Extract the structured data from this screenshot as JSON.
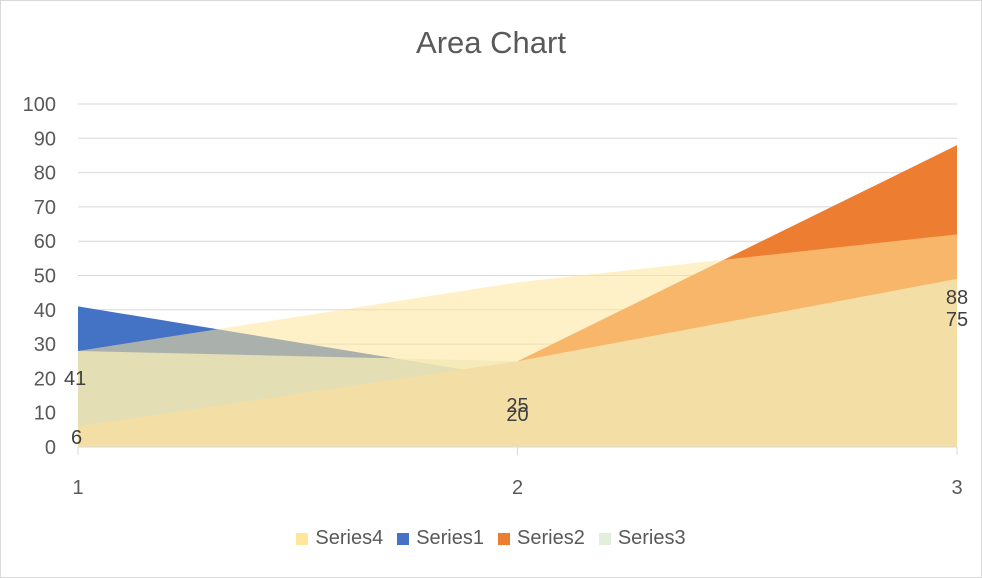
{
  "chart_data": {
    "type": "area",
    "title": "Area Chart",
    "categories": [
      "1",
      "2",
      "3"
    ],
    "ylim": [
      0,
      100
    ],
    "yticks": [
      "0",
      "10",
      "20",
      "30",
      "40",
      "50",
      "60",
      "70",
      "80",
      "90",
      "100"
    ],
    "grid": true,
    "legend_position": "bottom",
    "legend_order": [
      "Series4",
      "Series1",
      "Series2",
      "Series3"
    ],
    "series": [
      {
        "name": "Series1",
        "values": [
          41,
          20,
          75
        ],
        "color": "#4472c4"
      },
      {
        "name": "Series2",
        "values": [
          6,
          25,
          88
        ],
        "color": "#ed7d31"
      },
      {
        "name": "Series3",
        "values": [
          28,
          25,
          49
        ],
        "color": "#e2efda"
      },
      {
        "name": "Series4",
        "values": [
          28,
          48,
          62
        ],
        "color": "#ffe699"
      }
    ],
    "data_labels": [
      {
        "series": "Series1",
        "category": "1",
        "text": "41"
      },
      {
        "series": "Series2",
        "category": "1",
        "text": "6"
      },
      {
        "series": "Series2",
        "category": "2",
        "text": "25"
      },
      {
        "series": "Series1",
        "category": "2",
        "text": "20"
      },
      {
        "series": "Series2",
        "category": "3",
        "text": "88"
      },
      {
        "series": "Series1",
        "category": "3",
        "text": "75"
      }
    ]
  }
}
